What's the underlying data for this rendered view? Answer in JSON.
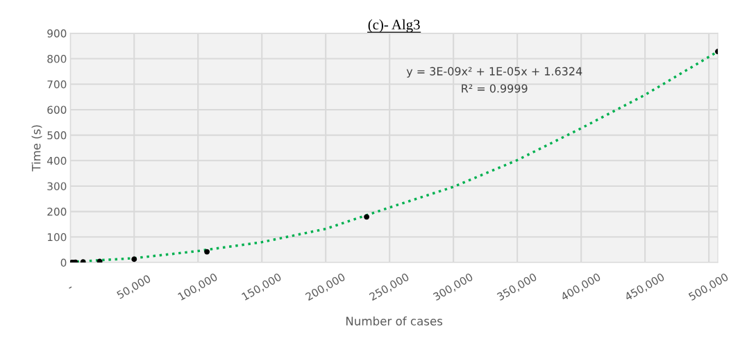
{
  "chart_data": {
    "type": "scatter",
    "title": "(c)- Alg3",
    "xlabel": "Number of cases",
    "ylabel": "Time (s)",
    "series": [
      {
        "marker": "circle",
        "color": "#000000",
        "x": [
          1000,
          2000,
          4000,
          10000,
          23000,
          50000,
          107000,
          232000,
          507000
        ],
        "values": [
          0,
          0,
          1,
          2,
          4,
          13,
          42,
          179,
          828
        ]
      },
      {
        "type": "line",
        "marker": "none",
        "color": "#00b050",
        "x": [
          0,
          50000,
          100000,
          150000,
          200000,
          250000,
          300000,
          350000,
          400000,
          450000,
          507000
        ],
        "values": [
          2,
          17,
          45,
          80,
          132,
          216,
          297,
          402,
          527,
          658,
          828
        ]
      }
    ],
    "annotations": [
      "y = 3E-09x² + 1E-05x + 1.6324",
      "R² = 0.9999"
    ],
    "xlim": [
      0,
      507000
    ],
    "xticks": [
      {
        "value": 0,
        "label": "-"
      },
      {
        "value": 50000,
        "label": "50,000"
      },
      {
        "value": 100000,
        "label": "100,000"
      },
      {
        "value": 150000,
        "label": "150,000"
      },
      {
        "value": 200000,
        "label": "200,000"
      },
      {
        "value": 250000,
        "label": "250,000"
      },
      {
        "value": 300000,
        "label": "300,000"
      },
      {
        "value": 350000,
        "label": "350,000"
      },
      {
        "value": 400000,
        "label": "400,000"
      },
      {
        "value": 450000,
        "label": "450,000"
      },
      {
        "value": 500000,
        "label": "500,000"
      }
    ],
    "ylim": [
      0,
      900
    ],
    "yticks": [
      0,
      100,
      200,
      300,
      400,
      500,
      600,
      700,
      800,
      900
    ],
    "grid": true,
    "line_style": "dotted"
  }
}
